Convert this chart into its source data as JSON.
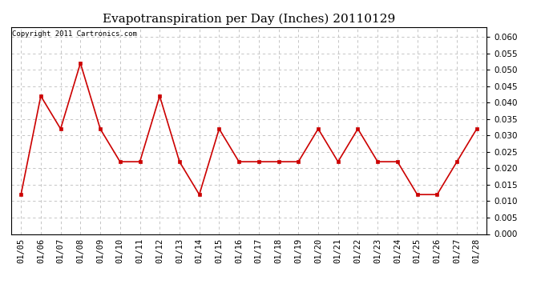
{
  "title": "Evapotranspiration per Day (Inches) 20110129",
  "copyright_text": "Copyright 2011 Cartronics.com",
  "x_labels": [
    "01/05",
    "01/06",
    "01/07",
    "01/08",
    "01/09",
    "01/10",
    "01/11",
    "01/12",
    "01/13",
    "01/14",
    "01/15",
    "01/16",
    "01/17",
    "01/18",
    "01/19",
    "01/20",
    "01/21",
    "01/22",
    "01/23",
    "01/24",
    "01/25",
    "01/26",
    "01/27",
    "01/28"
  ],
  "y_values": [
    0.012,
    0.042,
    0.032,
    0.052,
    0.032,
    0.022,
    0.022,
    0.042,
    0.022,
    0.012,
    0.032,
    0.022,
    0.022,
    0.022,
    0.022,
    0.032,
    0.022,
    0.032,
    0.022,
    0.022,
    0.012,
    0.012,
    0.022,
    0.032
  ],
  "line_color": "#cc0000",
  "marker": "s",
  "marker_size": 3,
  "ylim": [
    0.0,
    0.063
  ],
  "yticks": [
    0.0,
    0.005,
    0.01,
    0.015,
    0.02,
    0.025,
    0.03,
    0.035,
    0.04,
    0.045,
    0.05,
    0.055,
    0.06
  ],
  "grid_color": "#bbbbbb",
  "bg_color": "#ffffff",
  "title_fontsize": 11,
  "copyright_fontsize": 6.5,
  "tick_fontsize": 7.5
}
